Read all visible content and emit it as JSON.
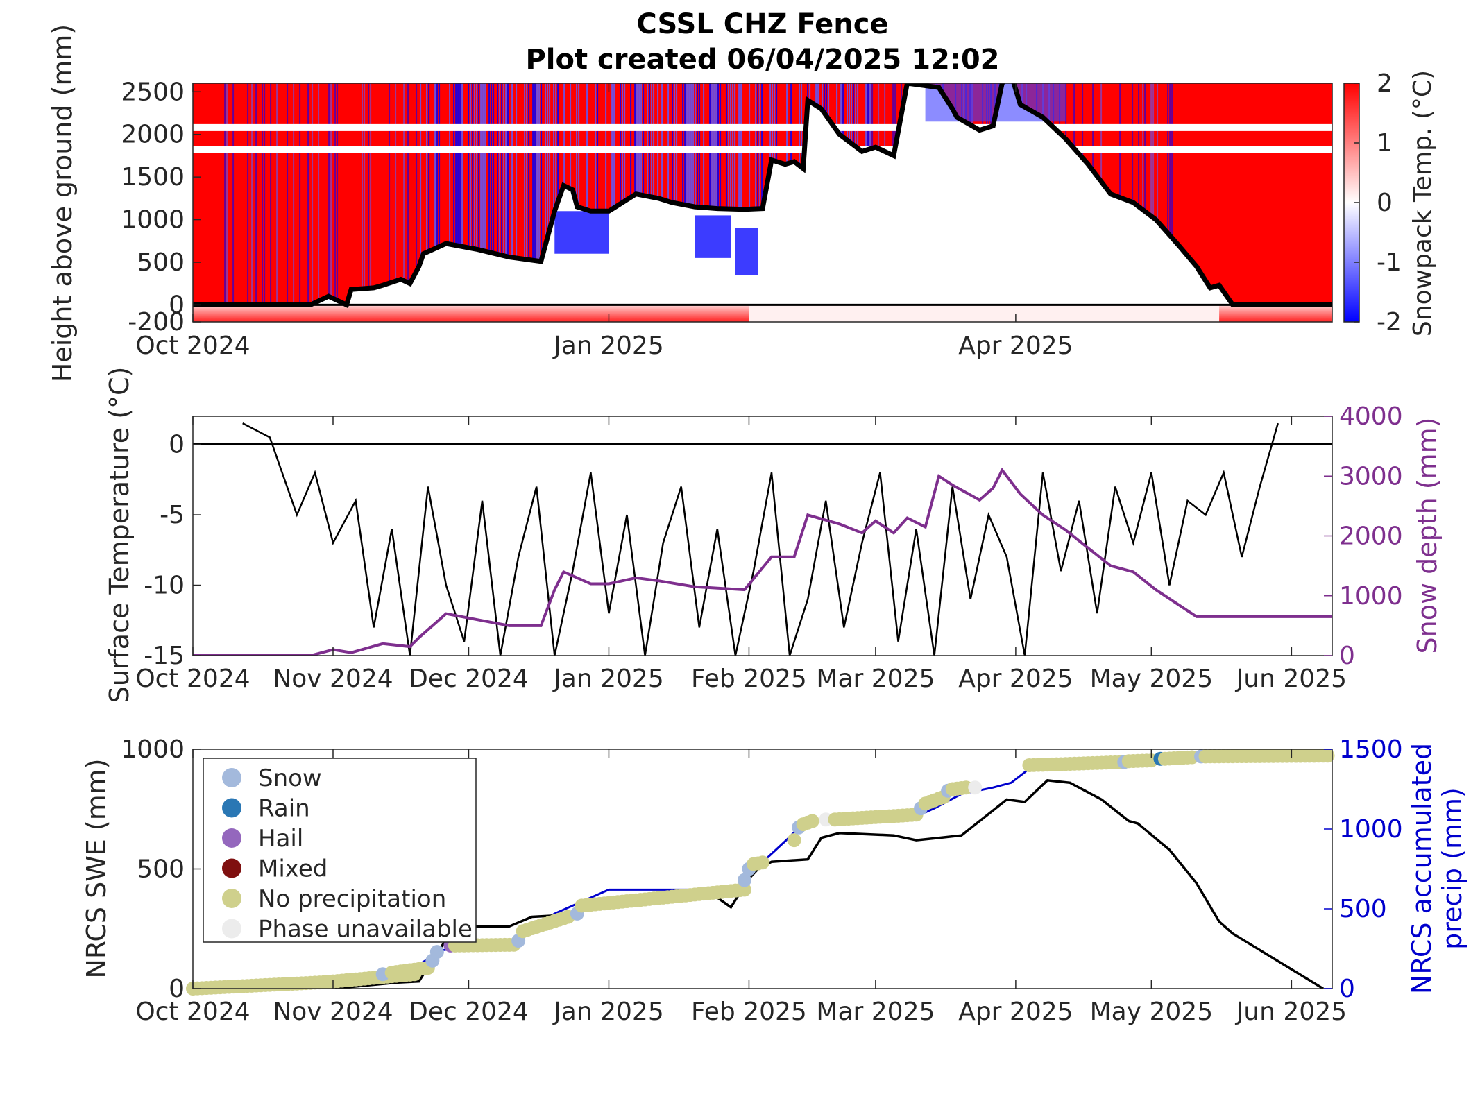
{
  "chart_data": [
    {
      "type": "heatmap",
      "title": [
        "CSSL CHZ Fence",
        "Plot created 06/04/2025 12:02"
      ],
      "ylabel": "Height above ground (mm)",
      "colorbar_label": "Snowpack Temp. (°C)",
      "colorbar_ticks": [
        "2",
        "1",
        "0",
        "-1",
        "-2"
      ],
      "clim": [
        -2,
        2
      ],
      "colormap": [
        "#0000ff",
        "#ffffff",
        "#ff0000"
      ],
      "xlim": [
        "2024-10-01",
        "2025-06-10"
      ],
      "xticks": [
        "Oct 2024",
        "Jan 2025",
        "Apr 2025"
      ],
      "xtick_dates": [
        "2024-10-01",
        "2025-01-01",
        "2025-04-01"
      ],
      "ylim": [
        -200,
        2600
      ],
      "yticks": [
        "-200",
        "0",
        "500",
        "1000",
        "1500",
        "2000",
        "2500"
      ],
      "ytick_values": [
        -200,
        0,
        500,
        1000,
        1500,
        2000,
        2500
      ],
      "snow_depth_line": {
        "color": "#000000",
        "x": [
          "2024-10-01",
          "2024-10-27",
          "2024-10-31",
          "2024-11-04",
          "2024-11-05",
          "2024-11-10",
          "2024-11-12",
          "2024-11-16",
          "2024-11-18",
          "2024-11-20",
          "2024-11-21",
          "2024-11-26",
          "2024-12-03",
          "2024-12-10",
          "2024-12-17",
          "2024-12-20",
          "2024-12-22",
          "2024-12-24",
          "2024-12-25",
          "2024-12-28",
          "2025-01-01",
          "2025-01-07",
          "2025-01-12",
          "2025-01-15",
          "2025-01-20",
          "2025-01-25",
          "2025-01-31",
          "2025-02-04",
          "2025-02-06",
          "2025-02-09",
          "2025-02-11",
          "2025-02-13",
          "2025-02-14",
          "2025-02-17",
          "2025-02-21",
          "2025-02-26",
          "2025-03-01",
          "2025-03-05",
          "2025-03-08",
          "2025-03-15",
          "2025-03-18",
          "2025-03-19",
          "2025-03-24",
          "2025-03-27",
          "2025-03-29",
          "2025-03-31",
          "2025-04-02",
          "2025-04-07",
          "2025-04-12",
          "2025-04-17",
          "2025-04-22",
          "2025-04-27",
          "2025-05-02",
          "2025-05-07",
          "2025-05-11",
          "2025-05-14",
          "2025-05-16",
          "2025-05-19",
          "2025-06-10"
        ],
        "y": [
          0,
          0,
          100,
          0,
          180,
          200,
          230,
          300,
          250,
          450,
          600,
          720,
          650,
          560,
          510,
          1100,
          1400,
          1350,
          1150,
          1100,
          1100,
          1300,
          1250,
          1200,
          1150,
          1130,
          1120,
          1130,
          1700,
          1650,
          1680,
          1600,
          2400,
          2300,
          2000,
          1800,
          1850,
          1750,
          2600,
          2550,
          2300,
          2200,
          2050,
          2100,
          2600,
          2700,
          2350,
          2200,
          1950,
          1650,
          1300,
          1200,
          1000,
          700,
          450,
          200,
          230,
          0,
          0
        ]
      }
    },
    {
      "type": "line",
      "ylabel": "Surface Temperature (°C)",
      "y2label": "Snow depth (mm)",
      "xlim": [
        "2024-10-01",
        "2025-06-10"
      ],
      "xticks": [
        "Oct 2024",
        "Nov 2024",
        "Dec 2024",
        "Jan 2025",
        "Feb 2025",
        "Mar 2025",
        "Apr 2025",
        "May 2025",
        "Jun 2025"
      ],
      "xtick_dates": [
        "2024-10-01",
        "2024-11-01",
        "2024-12-01",
        "2025-01-01",
        "2025-02-01",
        "2025-03-01",
        "2025-04-01",
        "2025-05-01",
        "2025-06-01"
      ],
      "ylim": [
        -15,
        2
      ],
      "yticks": [
        "-15",
        "-10",
        "-5",
        "0"
      ],
      "ytick_values": [
        -15,
        -10,
        -5,
        0
      ],
      "y2lim": [
        0,
        4000
      ],
      "y2ticks": [
        "0",
        "1000",
        "2000",
        "3000",
        "4000"
      ],
      "y2tick_values": [
        0,
        1000,
        2000,
        3000,
        4000
      ],
      "series": [
        {
          "axis": "left",
          "color": "#000000",
          "x": [
            "2024-10-12",
            "2024-10-18",
            "2024-10-24",
            "2024-10-28",
            "2024-11-01",
            "2024-11-06",
            "2024-11-10",
            "2024-11-14",
            "2024-11-18",
            "2024-11-22",
            "2024-11-26",
            "2024-11-30",
            "2024-12-04",
            "2024-12-08",
            "2024-12-12",
            "2024-12-16",
            "2024-12-20",
            "2024-12-24",
            "2024-12-28",
            "2025-01-01",
            "2025-01-05",
            "2025-01-09",
            "2025-01-13",
            "2025-01-17",
            "2025-01-21",
            "2025-01-25",
            "2025-01-29",
            "2025-02-02",
            "2025-02-06",
            "2025-02-10",
            "2025-02-14",
            "2025-02-18",
            "2025-02-22",
            "2025-02-26",
            "2025-03-02",
            "2025-03-06",
            "2025-03-10",
            "2025-03-14",
            "2025-03-18",
            "2025-03-22",
            "2025-03-26",
            "2025-03-30",
            "2025-04-03",
            "2025-04-07",
            "2025-04-11",
            "2025-04-15",
            "2025-04-19",
            "2025-04-23",
            "2025-04-27",
            "2025-05-01",
            "2025-05-05",
            "2025-05-09",
            "2025-05-13",
            "2025-05-17",
            "2025-05-21",
            "2025-05-25",
            "2025-05-29"
          ],
          "y": [
            1.5,
            0.5,
            -5,
            -2,
            -7,
            -4,
            -13,
            -6,
            -15,
            -3,
            -10,
            -14,
            -4,
            -15,
            -8,
            -3,
            -15,
            -9,
            -2,
            -12,
            -5,
            -15,
            -7,
            -3,
            -13,
            -6,
            -15,
            -9,
            -2,
            -15,
            -11,
            -4,
            -13,
            -7,
            -2,
            -14,
            -6,
            -15,
            -3,
            -11,
            -5,
            -8,
            -15,
            -2,
            -9,
            -4,
            -12,
            -3,
            -7,
            -2,
            -10,
            -4,
            -5,
            -2,
            -8,
            -3,
            1.5
          ]
        },
        {
          "axis": "right",
          "color": "#7e2f8e",
          "x": [
            "2024-10-01",
            "2024-10-27",
            "2024-11-01",
            "2024-11-05",
            "2024-11-12",
            "2024-11-18",
            "2024-11-20",
            "2024-11-26",
            "2024-12-03",
            "2024-12-10",
            "2024-12-17",
            "2024-12-20",
            "2024-12-22",
            "2024-12-28",
            "2025-01-01",
            "2025-01-07",
            "2025-01-12",
            "2025-01-20",
            "2025-01-31",
            "2025-02-06",
            "2025-02-11",
            "2025-02-14",
            "2025-02-21",
            "2025-02-26",
            "2025-03-01",
            "2025-03-05",
            "2025-03-08",
            "2025-03-12",
            "2025-03-15",
            "2025-03-18",
            "2025-03-24",
            "2025-03-27",
            "2025-03-29",
            "2025-04-02",
            "2025-04-07",
            "2025-04-12",
            "2025-04-17",
            "2025-04-22",
            "2025-04-27",
            "2025-05-02",
            "2025-05-07",
            "2025-05-11",
            "2025-05-14",
            "2025-05-19",
            "2025-06-10"
          ],
          "y": [
            0,
            0,
            100,
            50,
            200,
            150,
            300,
            700,
            600,
            500,
            500,
            1100,
            1400,
            1200,
            1200,
            1300,
            1250,
            1150,
            1100,
            1650,
            1650,
            2350,
            2200,
            2050,
            2250,
            2050,
            2300,
            2150,
            3000,
            2850,
            2600,
            2800,
            3100,
            2700,
            2350,
            2100,
            1800,
            1500,
            1400,
            1100,
            850,
            650,
            650,
            650,
            650
          ]
        }
      ]
    },
    {
      "type": "scatter",
      "ylabel": "NRCS SWE (mm)",
      "y2label": [
        "NRCS accumulated",
        "precip (mm)"
      ],
      "xlim": [
        "2024-10-01",
        "2025-06-10"
      ],
      "xticks": [
        "Oct 2024",
        "Nov 2024",
        "Dec 2024",
        "Jan 2025",
        "Feb 2025",
        "Mar 2025",
        "Apr 2025",
        "May 2025",
        "Jun 2025"
      ],
      "xtick_dates": [
        "2024-10-01",
        "2024-11-01",
        "2024-12-01",
        "2025-01-01",
        "2025-02-01",
        "2025-03-01",
        "2025-04-01",
        "2025-05-01",
        "2025-06-01"
      ],
      "ylim": [
        0,
        1000
      ],
      "yticks": [
        "0",
        "500",
        "1000"
      ],
      "ytick_values": [
        0,
        500,
        1000
      ],
      "y2lim": [
        0,
        1500
      ],
      "y2ticks": [
        "0",
        "500",
        "1000",
        "1500"
      ],
      "y2tick_values": [
        0,
        500,
        1000,
        1500
      ],
      "legend_position": "top-left",
      "legend": [
        {
          "name": "Snow",
          "color": "#a3b9dc"
        },
        {
          "name": "Rain",
          "color": "#2a77b4"
        },
        {
          "name": "Hail",
          "color": "#9467bd"
        },
        {
          "name": "Mixed",
          "color": "#7f1010"
        },
        {
          "name": "No precipitation",
          "color": "#cfd08c"
        },
        {
          "name": "Phase unavailable",
          "color": "#ececec"
        }
      ],
      "swe_line": {
        "color": "#000000",
        "x": [
          "2024-10-01",
          "2024-11-01",
          "2024-11-15",
          "2024-11-20",
          "2024-11-23",
          "2024-11-28",
          "2024-12-10",
          "2024-12-15",
          "2024-12-25",
          "2025-01-01",
          "2025-01-20",
          "2025-01-25",
          "2025-01-28",
          "2025-02-01",
          "2025-02-03",
          "2025-02-06",
          "2025-02-14",
          "2025-02-17",
          "2025-02-21",
          "2025-03-05",
          "2025-03-10",
          "2025-03-15",
          "2025-03-20",
          "2025-03-26",
          "2025-03-30",
          "2025-04-03",
          "2025-04-08",
          "2025-04-13",
          "2025-04-20",
          "2025-04-26",
          "2025-04-28",
          "2025-05-05",
          "2025-05-11",
          "2025-05-16",
          "2025-05-19",
          "2025-06-08"
        ],
        "y": [
          0,
          0,
          25,
          30,
          120,
          260,
          260,
          300,
          310,
          380,
          390,
          380,
          340,
          460,
          500,
          530,
          540,
          630,
          650,
          640,
          620,
          630,
          640,
          730,
          790,
          780,
          870,
          860,
          790,
          700,
          690,
          580,
          440,
          280,
          230,
          0
        ]
      },
      "precip_line": {
        "color": "#0000cd",
        "x": [
          "2024-10-01",
          "2024-11-01",
          "2024-11-20",
          "2024-11-25",
          "2024-12-11",
          "2024-12-20",
          "2025-01-01",
          "2025-01-31",
          "2025-02-02",
          "2025-02-10",
          "2025-02-13",
          "2025-02-20",
          "2025-03-01",
          "2025-03-10",
          "2025-03-14",
          "2025-03-20",
          "2025-03-27",
          "2025-03-31",
          "2025-04-05",
          "2025-04-20",
          "2025-05-10",
          "2025-06-10"
        ],
        "y": [
          0,
          40,
          150,
          240,
          300,
          470,
          620,
          620,
          740,
          950,
          1040,
          1060,
          1060,
          1080,
          1130,
          1220,
          1260,
          1290,
          1400,
          1420,
          1450,
          1460
        ]
      },
      "markers": [
        {
          "phase": "No precipitation",
          "x_range": [
            "2024-10-01",
            "2024-10-30"
          ],
          "y_range": [
            0,
            40
          ]
        },
        {
          "phase": "No precipitation",
          "x_range": [
            "2024-10-30",
            "2024-11-19"
          ],
          "y_range": [
            40,
            90
          ]
        },
        {
          "phase": "Snow",
          "x": "2024-11-12",
          "y": 90
        },
        {
          "phase": "No precipitation",
          "x_range": [
            "2024-11-14",
            "2024-11-22"
          ],
          "y_range": [
            100,
            130
          ]
        },
        {
          "phase": "Snow",
          "x": "2024-11-23",
          "y": 175
        },
        {
          "phase": "Snow",
          "x": "2024-11-24",
          "y": 230
        },
        {
          "phase": "Hail",
          "x": "2024-11-27",
          "y": 270
        },
        {
          "phase": "No precipitation",
          "x_range": [
            "2024-11-28",
            "2024-12-11"
          ],
          "y_range": [
            270,
            275
          ]
        },
        {
          "phase": "Snow",
          "x": "2024-12-12",
          "y": 300
        },
        {
          "phase": "No precipitation",
          "x_range": [
            "2024-12-13",
            "2024-12-23"
          ],
          "y_range": [
            360,
            450
          ]
        },
        {
          "phase": "Snow",
          "x": "2024-12-25",
          "y": 470
        },
        {
          "phase": "No precipitation",
          "x_range": [
            "2024-12-26",
            "2025-01-31"
          ],
          "y_range": [
            520,
            620
          ]
        },
        {
          "phase": "Snow",
          "x": "2025-01-31",
          "y": 680
        },
        {
          "phase": "Snow",
          "x": "2025-02-01",
          "y": 750
        },
        {
          "phase": "No precipitation",
          "x_range": [
            "2025-02-02",
            "2025-02-04"
          ],
          "y_range": [
            780,
            790
          ]
        },
        {
          "phase": "No precipitation",
          "x": "2025-02-11",
          "y": 930
        },
        {
          "phase": "Snow",
          "x": "2025-02-12",
          "y": 1010
        },
        {
          "phase": "No precipitation",
          "x_range": [
            "2025-02-13",
            "2025-02-15"
          ],
          "y_range": [
            1030,
            1050
          ]
        },
        {
          "phase": "Phase unavailable",
          "x": "2025-02-18",
          "y": 1060
        },
        {
          "phase": "No precipitation",
          "x_range": [
            "2025-02-20",
            "2025-03-10"
          ],
          "y_range": [
            1060,
            1090
          ]
        },
        {
          "phase": "Snow",
          "x": "2025-03-11",
          "y": 1130
        },
        {
          "phase": "No precipitation",
          "x_range": [
            "2025-03-12",
            "2025-03-16"
          ],
          "y_range": [
            1160,
            1200
          ]
        },
        {
          "phase": "Snow",
          "x": "2025-03-17",
          "y": 1240
        },
        {
          "phase": "No precipitation",
          "x_range": [
            "2025-03-18",
            "2025-03-21"
          ],
          "y_range": [
            1250,
            1260
          ]
        },
        {
          "phase": "Phase unavailable",
          "x": "2025-03-23",
          "y": 1260
        },
        {
          "phase": "No precipitation",
          "x_range": [
            "2025-04-04",
            "2025-04-25"
          ],
          "y_range": [
            1400,
            1420
          ]
        },
        {
          "phase": "Snow",
          "x": "2025-04-25",
          "y": 1420
        },
        {
          "phase": "No precipitation",
          "x_range": [
            "2025-04-26",
            "2025-05-01"
          ],
          "y_range": [
            1425,
            1430
          ]
        },
        {
          "phase": "Rain",
          "x": "2025-05-03",
          "y": 1440
        },
        {
          "phase": "No precipitation",
          "x_range": [
            "2025-05-04",
            "2025-05-10"
          ],
          "y_range": [
            1440,
            1450
          ]
        },
        {
          "phase": "Snow",
          "x": "2025-05-12",
          "y": 1455
        },
        {
          "phase": "No precipitation",
          "x_range": [
            "2025-05-13",
            "2025-06-09"
          ],
          "y_range": [
            1455,
            1460
          ]
        }
      ]
    }
  ]
}
